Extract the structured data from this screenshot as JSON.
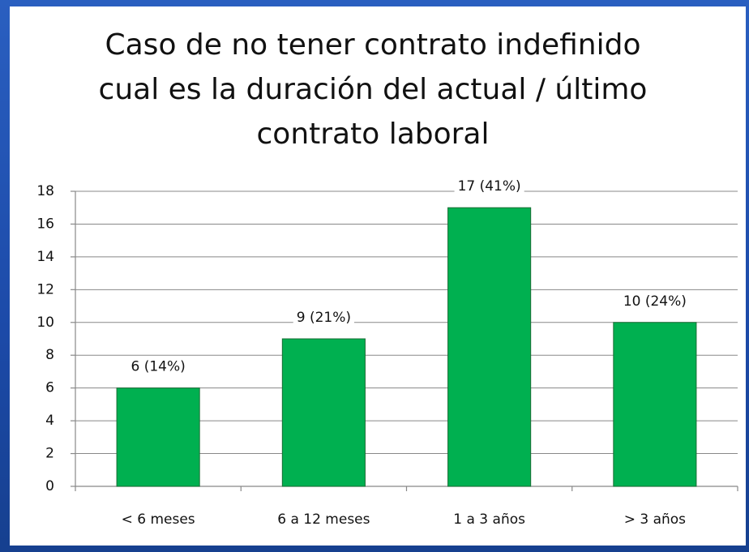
{
  "chart_data": {
    "type": "bar",
    "title": "Caso de no tener contrato indefinido cual es la duración del actual / último contrato laboral",
    "categories": [
      "< 6 meses",
      "6 a 12 meses",
      "1 a 3 años",
      "> 3 años"
    ],
    "values": [
      6,
      9,
      17,
      10
    ],
    "value_labels": [
      "6 (14%)",
      "9 (21%)",
      "17 (41%)",
      "10 (24%)"
    ],
    "color": "#00b050",
    "ylim": [
      0,
      18
    ],
    "yticks": [
      0,
      2,
      4,
      6,
      8,
      10,
      12,
      14,
      16,
      18
    ],
    "grid": true
  }
}
